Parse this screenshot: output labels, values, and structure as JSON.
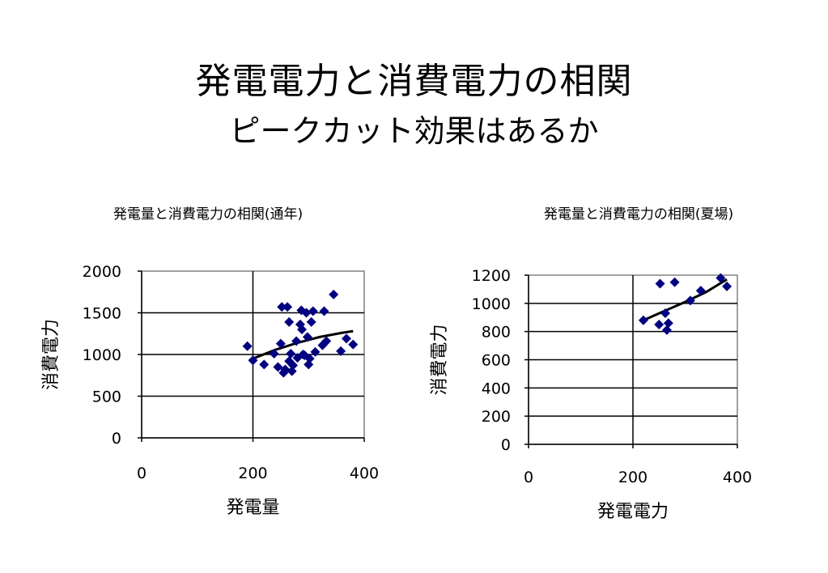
{
  "slide": {
    "title": "発電電力と消費電力の相関",
    "subtitle": "ピークカット効果はあるか"
  },
  "chart_data": [
    {
      "type": "scatter",
      "title": "発電量と消費電力の相関(通年)",
      "xlabel": "発電量",
      "ylabel": "消費電力",
      "xlim": [
        0,
        400
      ],
      "ylim": [
        0,
        2000
      ],
      "xticks": [
        0,
        200,
        400
      ],
      "yticks": [
        0,
        500,
        1000,
        1500,
        2000
      ],
      "grid": true,
      "legend": "none",
      "marker_color": "#000080",
      "trend_color": "#000000",
      "points": [
        [
          190,
          1100
        ],
        [
          200,
          930
        ],
        [
          220,
          880
        ],
        [
          238,
          1010
        ],
        [
          245,
          850
        ],
        [
          250,
          1130
        ],
        [
          252,
          1570
        ],
        [
          255,
          780
        ],
        [
          258,
          820
        ],
        [
          262,
          1570
        ],
        [
          265,
          1390
        ],
        [
          265,
          920
        ],
        [
          268,
          1010
        ],
        [
          270,
          800
        ],
        [
          272,
          870
        ],
        [
          278,
          1160
        ],
        [
          280,
          960
        ],
        [
          285,
          1360
        ],
        [
          287,
          1530
        ],
        [
          288,
          1300
        ],
        [
          290,
          1000
        ],
        [
          293,
          990
        ],
        [
          296,
          1500
        ],
        [
          298,
          1210
        ],
        [
          300,
          880
        ],
        [
          302,
          950
        ],
        [
          305,
          1390
        ],
        [
          308,
          1520
        ],
        [
          312,
          1030
        ],
        [
          325,
          1110
        ],
        [
          328,
          1520
        ],
        [
          332,
          1160
        ],
        [
          345,
          1720
        ],
        [
          358,
          1040
        ],
        [
          368,
          1190
        ],
        [
          380,
          1120
        ]
      ],
      "trendline": [
        [
          200,
          950
        ],
        [
          240,
          1055
        ],
        [
          280,
          1140
        ],
        [
          320,
          1210
        ],
        [
          360,
          1260
        ],
        [
          380,
          1280
        ]
      ]
    },
    {
      "type": "scatter",
      "title": "発電量と消費電力の相関(夏場)",
      "xlabel": "発電電力",
      "ylabel": "消費電力",
      "xlim": [
        0,
        400
      ],
      "ylim": [
        0,
        1200
      ],
      "xticks": [
        0,
        200,
        400
      ],
      "yticks": [
        0,
        200,
        400,
        600,
        800,
        1000,
        1200
      ],
      "grid": true,
      "legend": "none",
      "marker_color": "#000080",
      "trend_color": "#000000",
      "points": [
        [
          220,
          880
        ],
        [
          250,
          850
        ],
        [
          252,
          1140
        ],
        [
          262,
          930
        ],
        [
          265,
          810
        ],
        [
          268,
          860
        ],
        [
          280,
          1150
        ],
        [
          310,
          1020
        ],
        [
          330,
          1090
        ],
        [
          368,
          1180
        ],
        [
          380,
          1120
        ]
      ],
      "trendline": [
        [
          220,
          880
        ],
        [
          260,
          945
        ],
        [
          300,
          1010
        ],
        [
          340,
          1080
        ],
        [
          380,
          1170
        ]
      ]
    }
  ]
}
